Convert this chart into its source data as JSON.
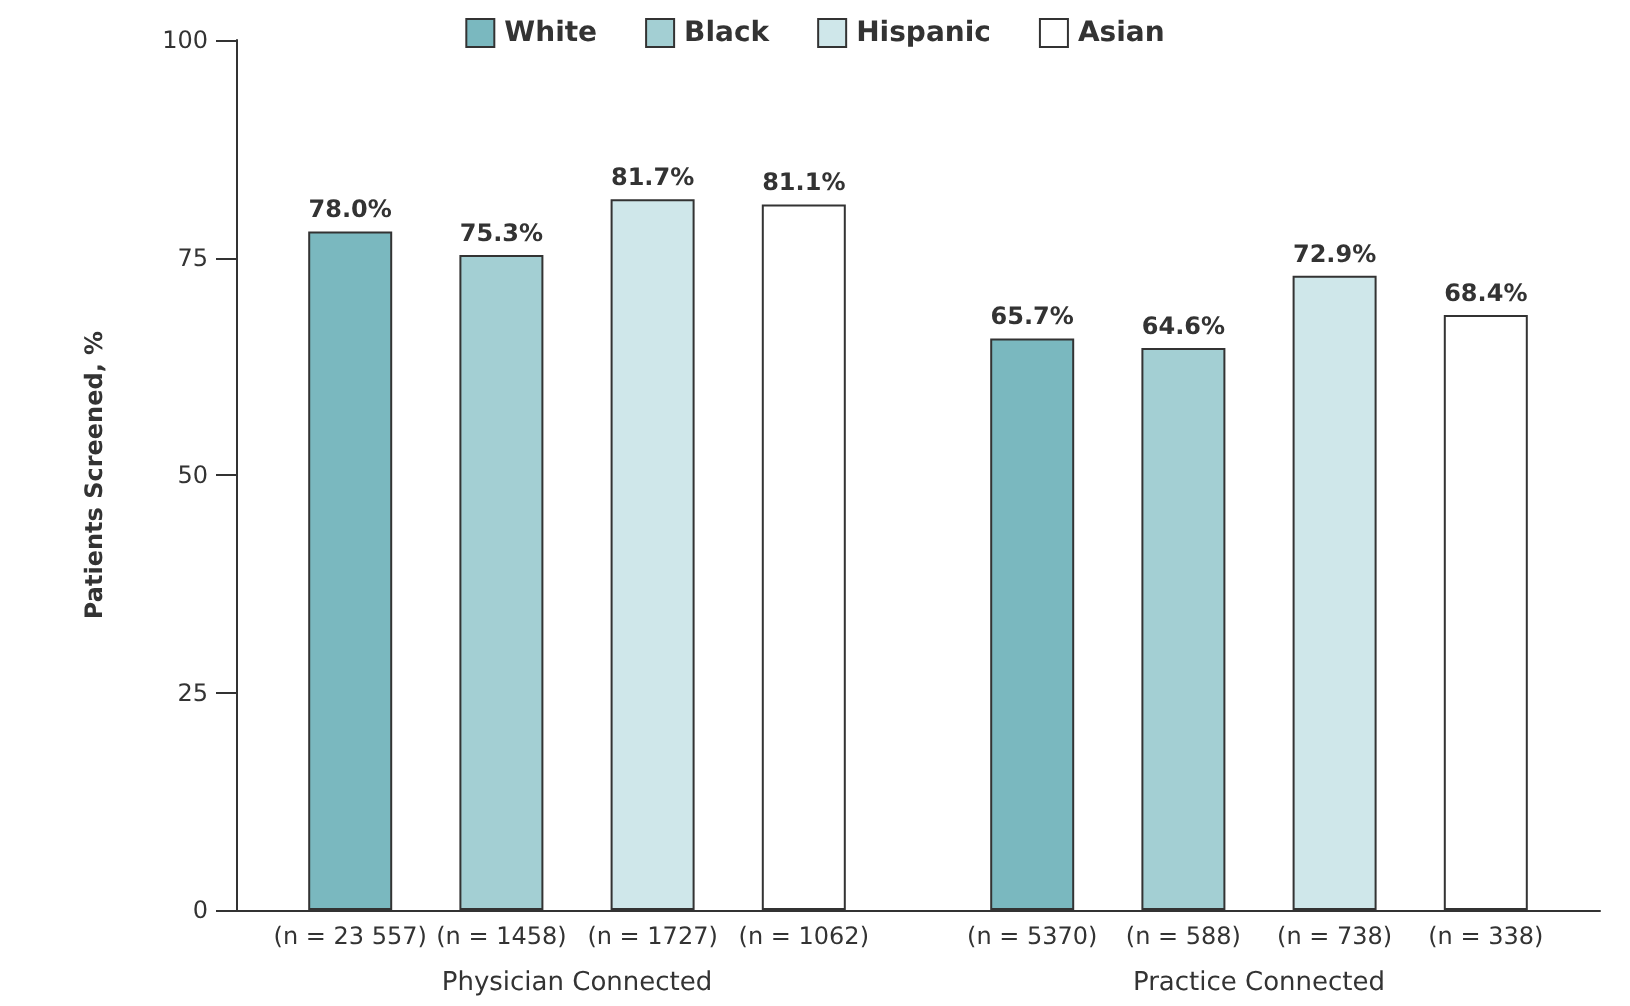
{
  "chart_data": {
    "type": "bar",
    "categories": [
      "Physician Connected",
      "Practice Connected"
    ],
    "series": [
      {
        "name": "White",
        "color": "#7ab8bf",
        "values": [
          78.0,
          65.7
        ],
        "value_labels": [
          "78.0%",
          "65.7%"
        ]
      },
      {
        "name": "Black",
        "color": "#a3cfd3",
        "values": [
          75.3,
          64.6
        ],
        "value_labels": [
          "75.3%",
          "64.6%"
        ]
      },
      {
        "name": "Hispanic",
        "color": "#cfe7ea",
        "values": [
          81.7,
          72.9
        ],
        "value_labels": [
          "81.7%",
          "72.9%"
        ]
      },
      {
        "name": "Asian",
        "color": "#ffffff",
        "values": [
          81.1,
          68.4
        ],
        "value_labels": [
          "81.1%",
          "68.4%"
        ]
      }
    ],
    "ylabel": "Patients Screened, %",
    "ylim": [
      0,
      100
    ],
    "yticks": [
      0,
      25,
      50,
      75,
      100
    ],
    "grid": false,
    "legend": "top",
    "annotations": [
      "(n = 23 557)",
      "(n = 1458)",
      "(n = 1727)",
      "(n = 1062)",
      "(n = 5370)",
      "(n = 588)",
      "(n = 738)",
      "(n = 338)"
    ]
  }
}
